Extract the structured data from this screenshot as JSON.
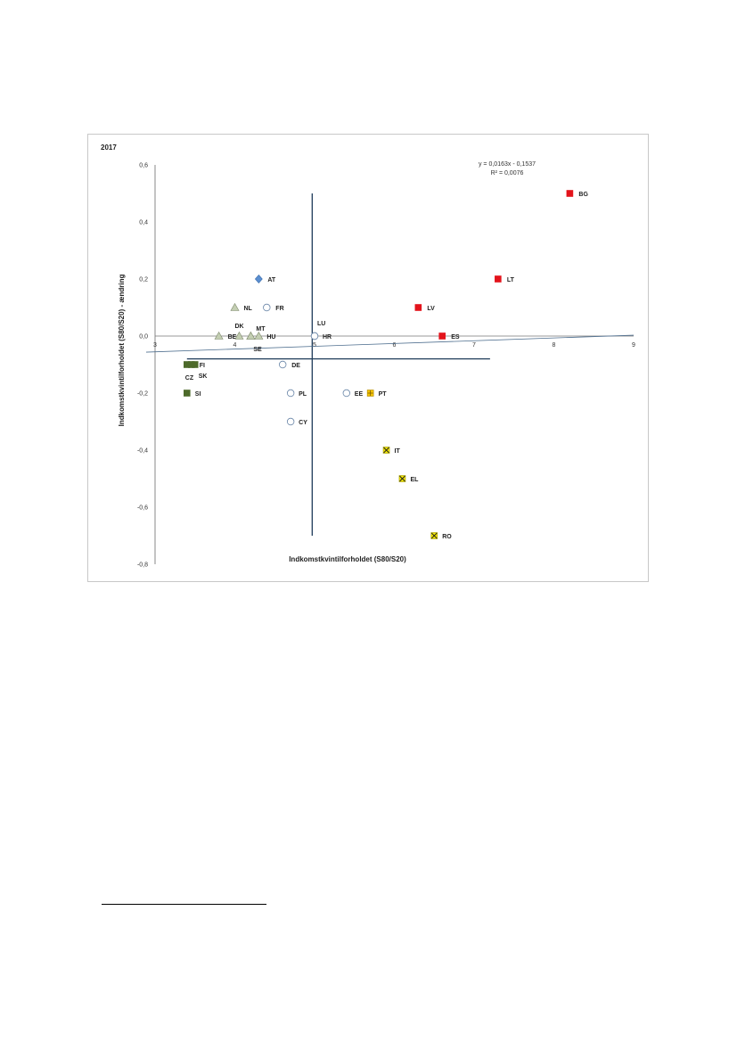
{
  "chart_data": {
    "type": "scatter",
    "title": "2017",
    "xlabel": "Indkomstkvintilforholdet  (S80/S20)",
    "ylabel": "Indkomstkvintilforholdet  (S80/S20) - ændring",
    "xlim": [
      3,
      9
    ],
    "ylim": [
      -0.8,
      0.6
    ],
    "x_ticks": [
      "3",
      "4",
      "5",
      "6",
      "7",
      "8",
      "9"
    ],
    "y_ticks": [
      "0,6",
      "0,4",
      "0,2",
      "0,0",
      "-0,2",
      "-0,4",
      "-0,6",
      "-0,8"
    ],
    "trendline": {
      "equation": "y = 0,0163x - 0,1537",
      "r_squared": "R² = 0,0076",
      "slope": 0.0163,
      "intercept": -0.1537
    },
    "reference_lines": {
      "vertical_x": 4.97,
      "horizontal_y": -0.08
    },
    "grid": false,
    "points": [
      {
        "label": "BG",
        "x": 8.2,
        "y": 0.5,
        "marker": "square",
        "color": "#e3131b"
      },
      {
        "label": "LT",
        "x": 7.3,
        "y": 0.2,
        "marker": "square",
        "color": "#e3131b"
      },
      {
        "label": "LV",
        "x": 6.3,
        "y": 0.1,
        "marker": "square",
        "color": "#e3131b"
      },
      {
        "label": "ES",
        "x": 6.6,
        "y": 0.0,
        "marker": "square",
        "color": "#e3131b"
      },
      {
        "label": "AT",
        "x": 4.3,
        "y": 0.2,
        "marker": "diamond",
        "color": "#5b8fd0"
      },
      {
        "label": "NL",
        "x": 4.0,
        "y": 0.1,
        "marker": "triangle",
        "color": "#c3ceb2"
      },
      {
        "label": "FR",
        "x": 4.4,
        "y": 0.1,
        "marker": "circle",
        "color": "#ffffff"
      },
      {
        "label": "BE",
        "x": 3.8,
        "y": 0.0,
        "marker": "triangle",
        "color": "#c3ceb2"
      },
      {
        "label": "DK",
        "x": 4.1,
        "y": 0.0,
        "marker": "triangle",
        "color": "#c3ceb2"
      },
      {
        "label": "MT",
        "x": 4.2,
        "y": 0.0,
        "marker": "triangle",
        "color": "#c3ceb2"
      },
      {
        "label": "HU",
        "x": 4.3,
        "y": 0.0,
        "marker": "triangle",
        "color": "#c3ceb2"
      },
      {
        "label": "SE",
        "x": 4.2,
        "y": 0.0,
        "marker": "triangle",
        "color": "#c3ceb2"
      },
      {
        "label": "LU",
        "x": 5.0,
        "y": 0.0,
        "marker": "circle",
        "color": "#ffffff"
      },
      {
        "label": "HR",
        "x": 5.0,
        "y": 0.0,
        "marker": "circle",
        "color": "#ffffff"
      },
      {
        "label": "FI",
        "x": 3.5,
        "y": -0.1,
        "marker": "square",
        "color": "#4d6a2a"
      },
      {
        "label": "CZ",
        "x": 3.4,
        "y": -0.1,
        "marker": "square",
        "color": "#4d6a2a"
      },
      {
        "label": "SK",
        "x": 3.5,
        "y": -0.1,
        "marker": "square",
        "color": "#4d6a2a"
      },
      {
        "label": "SI",
        "x": 3.4,
        "y": -0.2,
        "marker": "square",
        "color": "#4d6a2a"
      },
      {
        "label": "DE",
        "x": 4.6,
        "y": -0.1,
        "marker": "circle",
        "color": "#ffffff"
      },
      {
        "label": "PL",
        "x": 4.7,
        "y": -0.2,
        "marker": "circle",
        "color": "#ffffff"
      },
      {
        "label": "CY",
        "x": 4.7,
        "y": -0.3,
        "marker": "circle",
        "color": "#ffffff"
      },
      {
        "label": "EE",
        "x": 5.4,
        "y": -0.2,
        "marker": "circle",
        "color": "#ffffff"
      },
      {
        "label": "PT",
        "x": 5.7,
        "y": -0.2,
        "marker": "square-plus",
        "color": "#f4c400"
      },
      {
        "label": "IT",
        "x": 5.9,
        "y": -0.4,
        "marker": "square-x",
        "color": "#f2e500"
      },
      {
        "label": "EL",
        "x": 6.1,
        "y": -0.5,
        "marker": "square-x",
        "color": "#f2e500"
      },
      {
        "label": "RO",
        "x": 6.5,
        "y": -0.7,
        "marker": "square-x",
        "color": "#f2e500"
      }
    ]
  },
  "colors": {
    "axis": "#1f3c5a",
    "reference_lines": "#1f3c5a",
    "trendline": "#4f6f8f",
    "frame": "#c8c8c8"
  }
}
